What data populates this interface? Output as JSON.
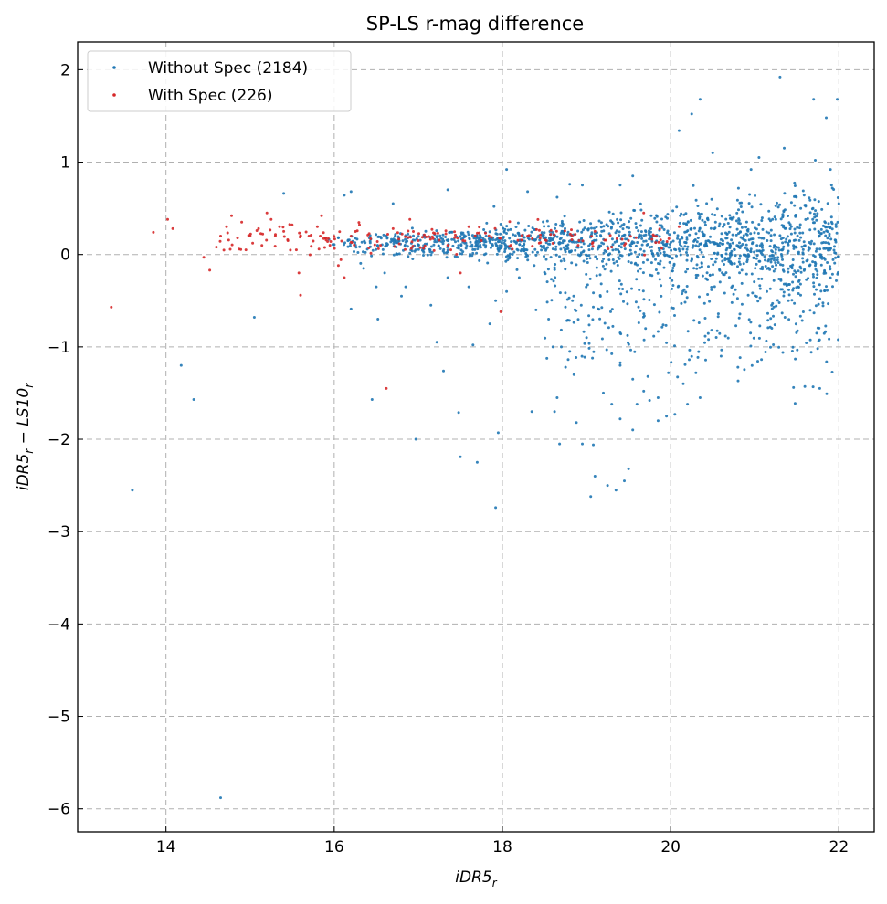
{
  "chart_data": {
    "type": "scatter",
    "title": "SP-LS r-mag difference",
    "xlabel_base": "iDR5",
    "xlabel_sub": "r",
    "ylabel_base1": "iDR5",
    "ylabel_sub1": "r",
    "ylabel_mid": " − LS10",
    "ylabel_sub2": "r",
    "xlim": [
      12.95,
      22.42
    ],
    "ylim": [
      -6.25,
      2.3
    ],
    "xticks": [
      14,
      16,
      18,
      20,
      22
    ],
    "yticks": [
      -6,
      -5,
      -4,
      -3,
      -2,
      -1,
      0,
      1,
      2
    ],
    "ytick_labels": [
      "−6",
      "−5",
      "−4",
      "−3",
      "−2",
      "−1",
      "0",
      "1",
      "2"
    ],
    "grid": true,
    "legend_position": "upper-left",
    "series": [
      {
        "name": "Without Spec (2184)",
        "color": "#1f77b4",
        "points": [
          [
            13.6,
            -2.55
          ],
          [
            14.18,
            -1.2
          ],
          [
            14.33,
            -1.57
          ],
          [
            14.65,
            -5.88
          ],
          [
            15.05,
            -0.68
          ],
          [
            15.4,
            0.66
          ],
          [
            16.45,
            -1.57
          ],
          [
            17.92,
            -2.74
          ],
          [
            17.95,
            -1.93
          ],
          [
            17.7,
            -2.25
          ],
          [
            17.5,
            -2.19
          ],
          [
            17.48,
            -1.71
          ],
          [
            17.3,
            -1.26
          ],
          [
            17.22,
            -0.95
          ],
          [
            17.65,
            -0.98
          ],
          [
            16.97,
            -2.0
          ],
          [
            16.2,
            -0.59
          ],
          [
            16.52,
            -0.7
          ],
          [
            16.12,
            0.64
          ],
          [
            16.2,
            0.68
          ],
          [
            16.05,
            0.18
          ],
          [
            16.35,
            -0.15
          ],
          [
            16.6,
            -0.2
          ],
          [
            16.7,
            0.55
          ],
          [
            17.35,
            0.7
          ],
          [
            17.9,
            0.52
          ],
          [
            18.05,
            0.92
          ],
          [
            18.3,
            0.68
          ],
          [
            18.65,
            0.62
          ],
          [
            18.8,
            0.76
          ],
          [
            18.95,
            0.75
          ],
          [
            19.4,
            0.75
          ],
          [
            19.55,
            0.85
          ],
          [
            20.1,
            1.34
          ],
          [
            20.25,
            1.52
          ],
          [
            20.35,
            1.68
          ],
          [
            20.5,
            1.1
          ],
          [
            21.05,
            1.05
          ],
          [
            21.3,
            1.92
          ],
          [
            21.35,
            1.15
          ],
          [
            21.7,
            1.68
          ],
          [
            21.85,
            1.48
          ],
          [
            21.98,
            1.68
          ],
          [
            21.72,
            1.02
          ],
          [
            21.9,
            0.92
          ],
          [
            22.0,
            0.55
          ],
          [
            21.95,
            0.02
          ],
          [
            21.55,
            -0.15
          ],
          [
            21.4,
            -0.5
          ],
          [
            21.2,
            -0.55
          ],
          [
            20.95,
            -0.85
          ],
          [
            20.8,
            -1.22
          ],
          [
            20.6,
            -1.1
          ],
          [
            20.45,
            -0.92
          ],
          [
            20.3,
            -1.28
          ],
          [
            20.2,
            -1.62
          ],
          [
            20.05,
            -1.73
          ],
          [
            19.95,
            -1.75
          ],
          [
            19.85,
            -1.8
          ],
          [
            19.75,
            -1.58
          ],
          [
            19.68,
            -1.48
          ],
          [
            19.55,
            -1.35
          ],
          [
            19.4,
            -1.2
          ],
          [
            19.5,
            -2.32
          ],
          [
            19.45,
            -2.45
          ],
          [
            19.35,
            -2.55
          ],
          [
            19.25,
            -2.5
          ],
          [
            19.1,
            -2.4
          ],
          [
            19.05,
            -2.62
          ],
          [
            19.08,
            -2.06
          ],
          [
            18.95,
            -2.05
          ],
          [
            18.88,
            -1.82
          ],
          [
            18.68,
            -2.05
          ],
          [
            18.62,
            -1.7
          ],
          [
            18.65,
            -1.55
          ],
          [
            18.35,
            -1.7
          ],
          [
            18.85,
            -1.3
          ],
          [
            18.75,
            -1.22
          ],
          [
            18.8,
            -1.05
          ],
          [
            18.7,
            -1.0
          ],
          [
            18.6,
            -1.0
          ],
          [
            19.2,
            -1.5
          ],
          [
            19.3,
            -1.62
          ],
          [
            19.4,
            -1.78
          ],
          [
            19.55,
            -1.9
          ],
          [
            19.6,
            -1.62
          ],
          [
            19.85,
            -1.55
          ],
          [
            20.15,
            -1.4
          ],
          [
            20.35,
            -1.55
          ],
          [
            19.0,
            -0.9
          ],
          [
            17.85,
            -0.75
          ],
          [
            17.92,
            -0.5
          ],
          [
            18.05,
            -0.4
          ],
          [
            17.6,
            -0.35
          ],
          [
            17.35,
            -0.25
          ],
          [
            17.15,
            -0.55
          ],
          [
            16.8,
            -0.45
          ],
          [
            16.5,
            -0.35
          ],
          [
            16.85,
            -0.35
          ],
          [
            18.2,
            -0.25
          ],
          [
            18.4,
            -0.6
          ],
          [
            18.55,
            -0.7
          ]
        ]
      },
      {
        "name": "With Spec (226)",
        "color": "#d62728",
        "points": [
          [
            13.35,
            -0.57
          ],
          [
            13.85,
            0.24
          ],
          [
            14.02,
            0.38
          ],
          [
            14.08,
            0.28
          ],
          [
            14.45,
            -0.03
          ],
          [
            14.52,
            -0.17
          ],
          [
            14.6,
            0.08
          ],
          [
            14.65,
            0.2
          ],
          [
            14.72,
            0.3
          ],
          [
            14.78,
            0.42
          ],
          [
            14.85,
            0.18
          ],
          [
            14.9,
            0.35
          ],
          [
            14.95,
            0.05
          ],
          [
            15.0,
            0.2
          ],
          [
            15.1,
            0.28
          ],
          [
            15.2,
            0.45
          ],
          [
            15.25,
            0.38
          ],
          [
            15.3,
            0.2
          ],
          [
            15.35,
            0.3
          ],
          [
            15.4,
            0.25
          ],
          [
            15.45,
            0.15
          ],
          [
            15.5,
            0.32
          ],
          [
            15.55,
            0.05
          ],
          [
            15.58,
            -0.2
          ],
          [
            15.6,
            -0.44
          ],
          [
            15.7,
            0.2
          ],
          [
            15.8,
            0.3
          ],
          [
            15.85,
            0.42
          ],
          [
            15.9,
            0.18
          ],
          [
            15.95,
            0.1
          ],
          [
            16.05,
            -0.12
          ],
          [
            16.12,
            -0.25
          ],
          [
            16.2,
            0.2
          ],
          [
            16.3,
            0.32
          ],
          [
            16.55,
            0.1
          ],
          [
            16.62,
            -1.45
          ],
          [
            16.7,
            0.28
          ],
          [
            16.9,
            0.38
          ],
          [
            17.0,
            0.15
          ],
          [
            17.35,
            0.1
          ],
          [
            17.5,
            -0.2
          ],
          [
            17.6,
            0.3
          ],
          [
            17.75,
            0.15
          ],
          [
            17.98,
            -0.62
          ],
          [
            18.1,
            0.1
          ],
          [
            18.3,
            0.2
          ],
          [
            18.6,
            0.12
          ],
          [
            18.9,
            0.1
          ],
          [
            19.1,
            0.25
          ],
          [
            19.3,
            0.08
          ],
          [
            19.5,
            0.15
          ],
          [
            19.68,
            0.45
          ],
          [
            19.8,
            0.2
          ],
          [
            20.1,
            0.3
          ]
        ]
      }
    ]
  }
}
